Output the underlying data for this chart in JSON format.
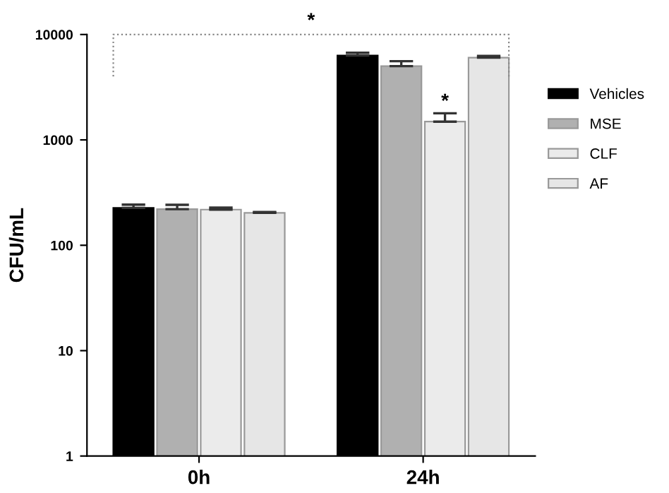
{
  "chart_data": {
    "type": "bar",
    "ylabel": "CFU/mL",
    "categories": [
      "0h",
      "24h"
    ],
    "series": [
      {
        "name": "Vehicles",
        "color": "#000000",
        "values": [
          226,
          6320
        ],
        "errors": [
          [
            226,
            243
          ],
          [
            6320,
            6710
          ]
        ]
      },
      {
        "name": "MSE",
        "color": "#b0b0b0",
        "values": [
          220,
          5010
        ],
        "errors": [
          [
            220,
            242
          ],
          [
            5010,
            5580
          ]
        ]
      },
      {
        "name": "CLF",
        "color": "#ebebeb",
        "values": [
          218,
          1490
        ],
        "errors": [
          [
            218,
            228
          ],
          [
            1490,
            1790
          ]
        ]
      },
      {
        "name": "AF",
        "color": "#e6e6e6",
        "values": [
          203,
          6040
        ],
        "errors": [
          [
            203,
            207
          ],
          [
            6040,
            6270
          ]
        ]
      }
    ],
    "log": true,
    "ylim": [
      1,
      10000
    ],
    "yticks": [
      1,
      10,
      100,
      1000,
      10000
    ],
    "grid": false,
    "legend": "right",
    "annotations": [
      "*",
      {
        "text": "*",
        "x": "24h",
        "y": 1790
      }
    ]
  }
}
